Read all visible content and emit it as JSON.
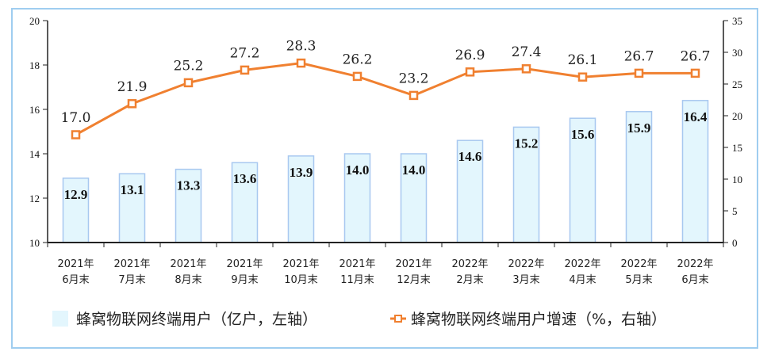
{
  "chart_data": {
    "type": "bar+line",
    "categories": [
      [
        "2021年",
        "6月末"
      ],
      [
        "2021年",
        "7月末"
      ],
      [
        "2021年",
        "8月末"
      ],
      [
        "2021年",
        "9月末"
      ],
      [
        "2021年",
        "10月末"
      ],
      [
        "2021年",
        "11月末"
      ],
      [
        "2021年",
        "12月末"
      ],
      [
        "2022年",
        "2月末"
      ],
      [
        "2022年",
        "3月末"
      ],
      [
        "2022年",
        "4月末"
      ],
      [
        "2022年",
        "5月末"
      ],
      [
        "2022年",
        "6月末"
      ]
    ],
    "series": [
      {
        "name": "蜂窝物联网终端用户（亿户，左轴）",
        "type": "bar",
        "axis": "left",
        "color": "#e3f6fd",
        "stroke": "#a8c8f0",
        "values": [
          12.9,
          13.1,
          13.3,
          13.6,
          13.9,
          14.0,
          14.0,
          14.6,
          15.2,
          15.6,
          15.9,
          16.4
        ]
      },
      {
        "name": "蜂窝物联网终端用户增速（%，右轴）",
        "type": "line",
        "axis": "right",
        "color": "#f08030",
        "values": [
          17.0,
          21.9,
          25.2,
          27.2,
          28.3,
          26.2,
          23.2,
          26.9,
          27.4,
          26.1,
          26.7,
          26.7
        ]
      }
    ],
    "left_axis": {
      "ylim": [
        10,
        20
      ],
      "ticks": [
        "10",
        "12",
        "14",
        "16",
        "18",
        "20"
      ]
    },
    "right_axis": {
      "ylim": [
        0,
        35
      ],
      "ticks": [
        "0",
        "5",
        "10",
        "15",
        "20",
        "25",
        "30",
        "35"
      ]
    },
    "legend": "bottom",
    "grid": false
  }
}
